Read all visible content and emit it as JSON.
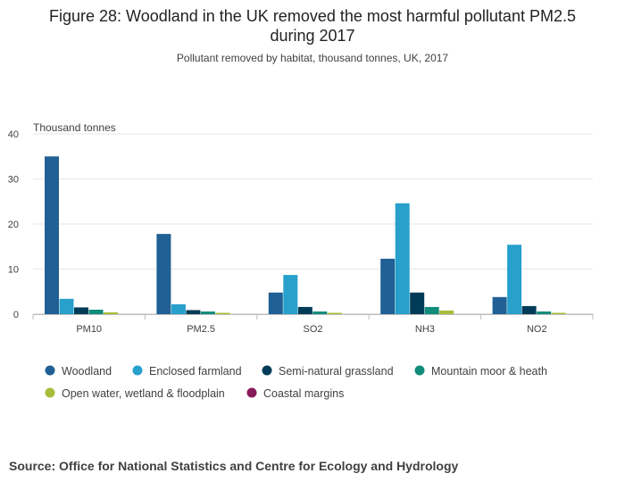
{
  "title_line1": "Figure 28: Woodland in the UK removed the most harmful pollutant PM2.5",
  "title_line2": "during 2017",
  "subtitle": "Pollutant removed by habitat, thousand tonnes, UK, 2017",
  "source": "Source: Office for National Statistics and Centre for Ecology and Hydrology",
  "chart_data": {
    "type": "bar",
    "title": "Figure 28: Woodland in the UK removed the most harmful pollutant PM2.5 during 2017",
    "subtitle": "Pollutant removed by habitat, thousand tonnes, UK, 2017",
    "ylabel": "Thousand tonnes",
    "xlabel": "",
    "ylim": [
      0,
      40
    ],
    "yticks": [
      0,
      10,
      20,
      30,
      40
    ],
    "grid": true,
    "legend_position": "bottom",
    "categories": [
      "PM10",
      "PM2.5",
      "SO2",
      "NH3",
      "NO2"
    ],
    "series": [
      {
        "name": "Woodland",
        "color": "#206095",
        "values": [
          35.0,
          17.8,
          4.8,
          12.3,
          3.8
        ]
      },
      {
        "name": "Enclosed farmland",
        "color": "#27a0cc",
        "values": [
          3.4,
          2.2,
          8.7,
          24.6,
          15.4
        ]
      },
      {
        "name": "Semi-natural grassland",
        "color": "#003c57",
        "values": [
          1.5,
          0.9,
          1.6,
          4.8,
          1.8
        ]
      },
      {
        "name": "Mountain moor & heath",
        "color": "#118c7b",
        "values": [
          1.0,
          0.6,
          0.6,
          1.6,
          0.6
        ]
      },
      {
        "name": "Open water, wetland & floodplain",
        "color": "#a8bd3a",
        "values": [
          0.4,
          0.3,
          0.3,
          0.8,
          0.3
        ]
      },
      {
        "name": "Coastal margins",
        "color": "#871a5b",
        "values": [
          0.0,
          0.0,
          0.0,
          0.0,
          0.0
        ]
      }
    ]
  }
}
